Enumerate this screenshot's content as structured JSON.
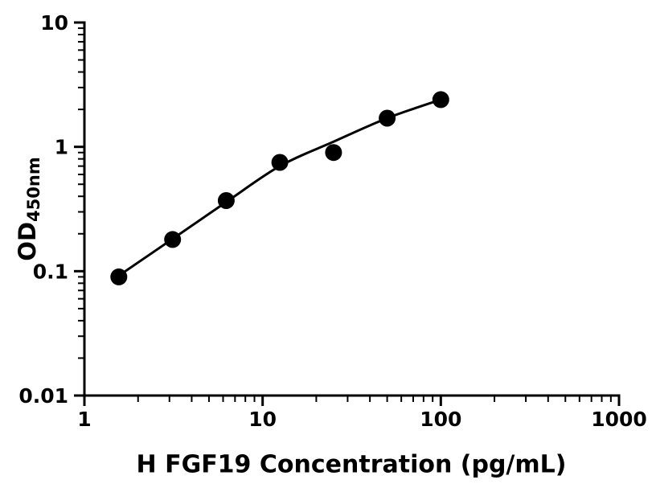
{
  "figure": {
    "background_color": "#ffffff",
    "foreground_color": "#000000"
  },
  "chart_data": {
    "type": "scatter",
    "title": "",
    "xlabel": "H FGF19 Concentration (pg/mL)",
    "ylabel": "OD450nm",
    "ylabel_main": "OD",
    "ylabel_sub": "450nm",
    "x_scale": "log",
    "y_scale": "log",
    "xlim": [
      1,
      1000
    ],
    "ylim": [
      0.01,
      10
    ],
    "grid": false,
    "legend_position": "none",
    "minor_ticks": true,
    "marker_color": "#000000",
    "line_color": "#000000",
    "x_ticks": [
      {
        "value": 1,
        "label": "1"
      },
      {
        "value": 10,
        "label": "10"
      },
      {
        "value": 100,
        "label": "100"
      },
      {
        "value": 1000,
        "label": "1000"
      }
    ],
    "y_ticks": [
      {
        "value": 0.01,
        "label": "0.01"
      },
      {
        "value": 0.1,
        "label": "0.1"
      },
      {
        "value": 1,
        "label": "1"
      },
      {
        "value": 10,
        "label": "10"
      }
    ],
    "series": [
      {
        "name": "standard-points",
        "render": "markers",
        "x": [
          1.56,
          3.125,
          6.25,
          12.5,
          25,
          50,
          100
        ],
        "y": [
          0.09,
          0.18,
          0.37,
          0.75,
          0.9,
          1.7,
          2.4
        ]
      },
      {
        "name": "fitted-curve",
        "render": "smooth-line",
        "x": [
          1.56,
          3.125,
          6.25,
          12.5,
          25,
          50,
          100
        ],
        "y": [
          0.092,
          0.182,
          0.36,
          0.7,
          1.1,
          1.7,
          2.4
        ]
      }
    ]
  }
}
